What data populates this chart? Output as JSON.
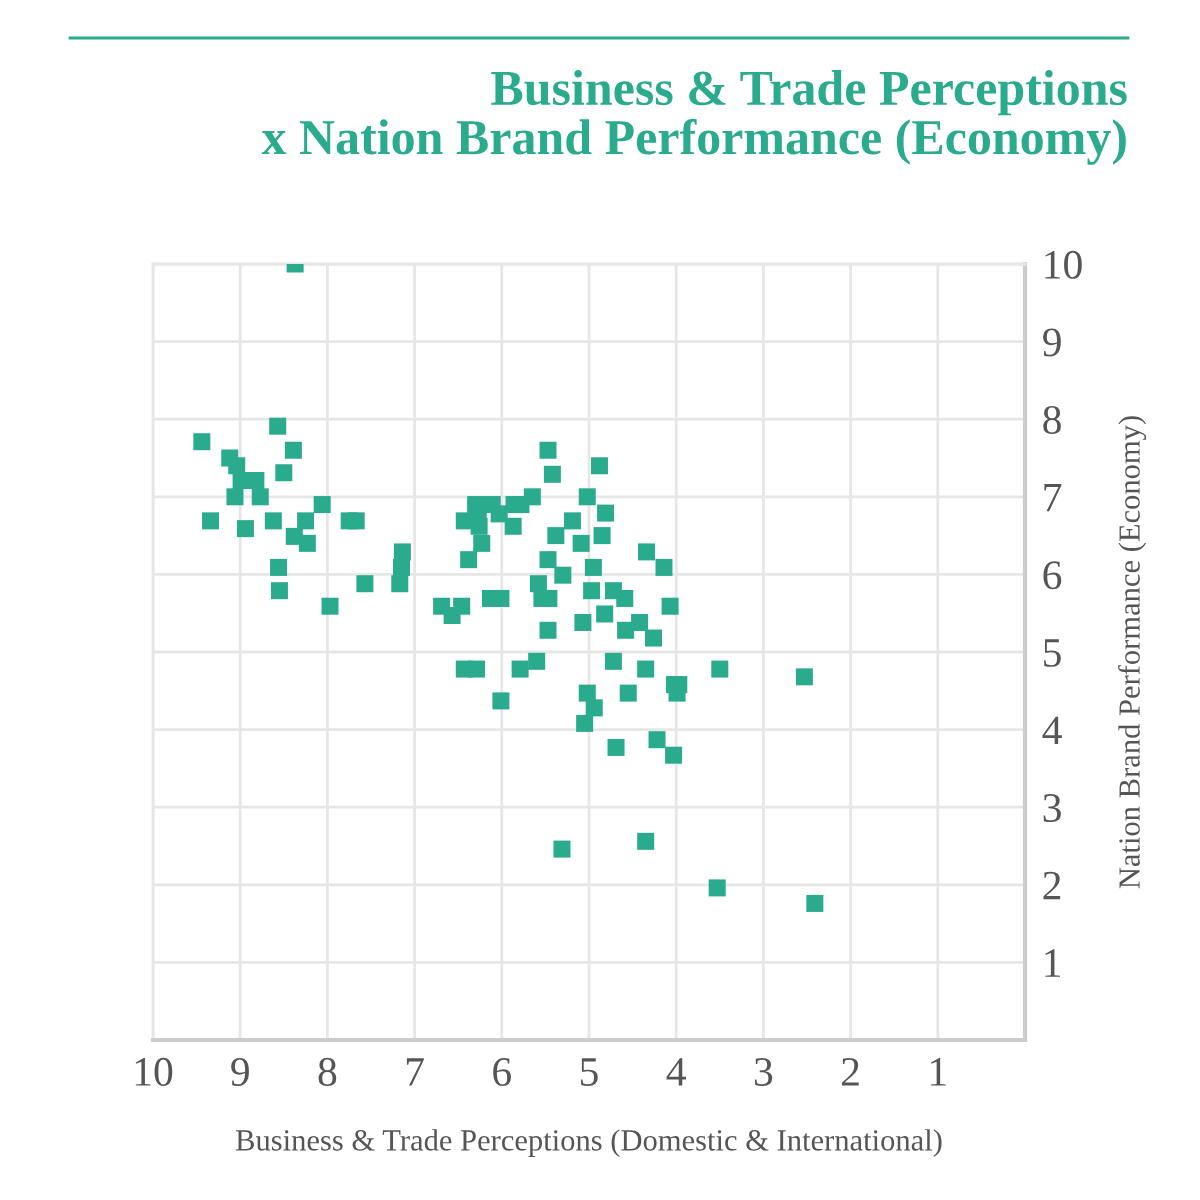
{
  "chart_data": {
    "type": "scatter",
    "title": "Business & Trade Perceptions\nx Nation Brand Performance (Economy)",
    "xlabel": "Business & Trade Perceptions (Domestic & International)",
    "ylabel": "Nation Brand Performance (Economy)",
    "xlim": [
      10,
      0
    ],
    "ylim": [
      0,
      10
    ],
    "xticks": [
      1,
      2,
      3,
      4,
      5,
      6,
      7,
      8,
      9,
      10
    ],
    "yticks": [
      1,
      2,
      3,
      4,
      5,
      6,
      7,
      8,
      9,
      10
    ],
    "grid": true,
    "marker": "square",
    "series": [
      {
        "color": "#2bab8e",
        "x": [
          8.37,
          9.44,
          8.57,
          8.39,
          9.12,
          9.04,
          8.99,
          8.82,
          8.5,
          9.06,
          8.77,
          8.06,
          9.34,
          8.94,
          8.62,
          8.25,
          8.38,
          8.23,
          8.56,
          8.55,
          7.97,
          7.75,
          7.67,
          7.57,
          7.14,
          7.15,
          7.17,
          6.69,
          6.57,
          6.46,
          6.43,
          6.38,
          6.3,
          6.27,
          6.26,
          6.23,
          6.11,
          6.03,
          5.86,
          5.78,
          5.65,
          5.87,
          5.47,
          5.42,
          4.88,
          5.02,
          4.81,
          5.19,
          5.38,
          4.85,
          5.09,
          4.34,
          5.47,
          4.14,
          4.95,
          5.3,
          5.58,
          5.54,
          5.46,
          4.97,
          4.72,
          4.59,
          4.07,
          6.13,
          6.01,
          4.82,
          5.07,
          4.42,
          4.58,
          5.47,
          4.26,
          6.43,
          6.29,
          5.79,
          5.6,
          4.72,
          4.35,
          3.5,
          2.53,
          4.02,
          3.97,
          3.99,
          5.02,
          4.55,
          6.01,
          4.94,
          5.05,
          4.69,
          4.22,
          4.03,
          5.31,
          4.35,
          3.53,
          2.41
        ],
        "values": [
          10.0,
          7.71,
          7.91,
          7.6,
          7.5,
          7.4,
          7.21,
          7.21,
          7.31,
          7.0,
          7.0,
          6.9,
          6.69,
          6.59,
          6.69,
          6.69,
          6.49,
          6.4,
          6.09,
          5.79,
          5.59,
          6.69,
          6.69,
          5.88,
          6.29,
          6.09,
          5.88,
          5.59,
          5.47,
          5.59,
          6.69,
          6.19,
          6.9,
          6.78,
          6.62,
          6.4,
          6.9,
          6.78,
          6.9,
          6.9,
          7.0,
          6.62,
          7.6,
          7.29,
          7.4,
          7.0,
          6.79,
          6.69,
          6.5,
          6.5,
          6.4,
          6.29,
          6.19,
          6.09,
          6.09,
          5.99,
          5.88,
          5.69,
          5.69,
          5.79,
          5.79,
          5.69,
          5.59,
          5.69,
          5.69,
          5.49,
          5.38,
          5.38,
          5.28,
          5.28,
          5.18,
          4.78,
          4.78,
          4.78,
          4.88,
          4.88,
          4.78,
          4.78,
          4.68,
          4.58,
          4.58,
          4.47,
          4.47,
          4.47,
          4.37,
          4.28,
          4.08,
          3.77,
          3.87,
          3.67,
          2.46,
          2.56,
          1.96,
          1.76
        ]
      }
    ]
  }
}
